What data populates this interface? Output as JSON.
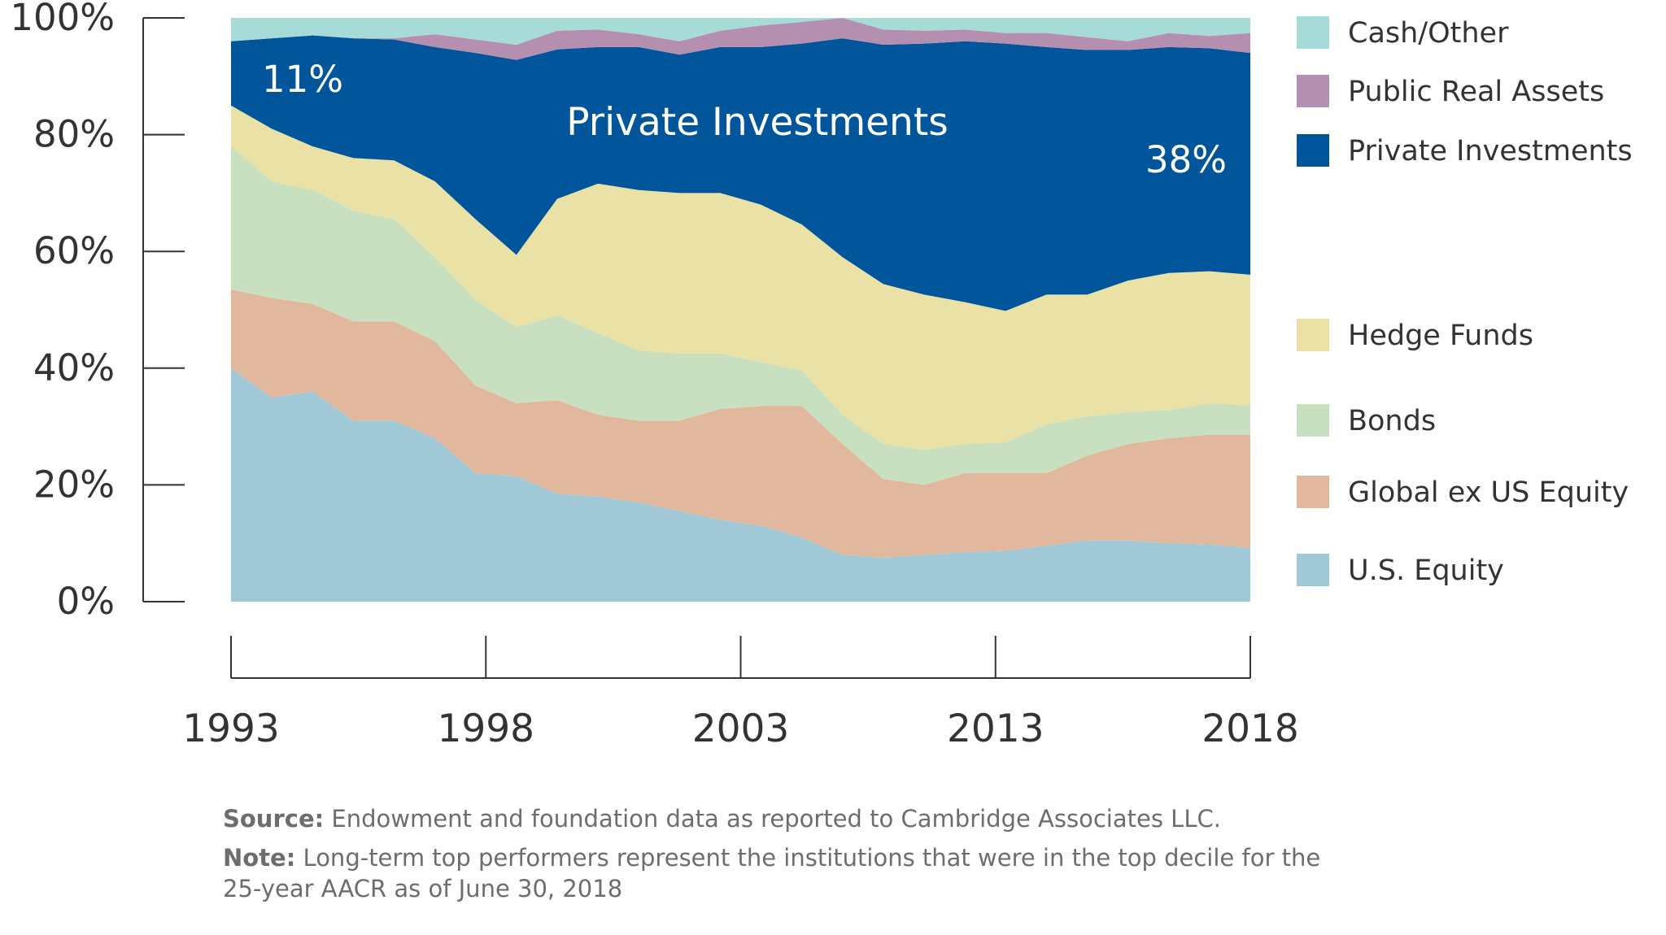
{
  "chart_data": {
    "type": "area",
    "stacked": true,
    "x": [
      1993,
      1994,
      1995,
      1996,
      1997,
      1998,
      1999,
      2000,
      2001,
      2002,
      2003,
      2004,
      2005,
      2006,
      2007,
      2008,
      2009,
      2010,
      2011,
      2012,
      2013,
      2014,
      2015,
      2016,
      2017,
      2018
    ],
    "x_tick_labels": [
      "1993",
      "1998",
      "2003",
      "2013",
      "2018"
    ],
    "y_tick_labels": [
      "0%",
      "20%",
      "40%",
      "60%",
      "80%",
      "100%"
    ],
    "ylim": [
      0,
      100
    ],
    "grid": false,
    "legend_position": "right",
    "series": [
      {
        "name": "U.S. Equity",
        "color": "#a1c8d6",
        "values": [
          40,
          35,
          36,
          31,
          31,
          28,
          22,
          21.5,
          18.5,
          18,
          17,
          15.5,
          14,
          13,
          11,
          8,
          7.5,
          8,
          8.5,
          8.7,
          9.6,
          10.5,
          10.5,
          10,
          9.8,
          9.2
        ]
      },
      {
        "name": "Global ex US Equity",
        "color": "#e1b79e",
        "values": [
          13.5,
          17,
          15,
          17,
          17,
          16.6,
          15,
          12.5,
          16,
          14,
          14,
          15.5,
          19,
          20.5,
          22.5,
          19,
          13.5,
          12,
          13.5,
          13.3,
          12.4,
          14.5,
          16.5,
          18,
          18.8,
          19.4
        ]
      },
      {
        "name": "Bonds",
        "color": "#c8dfc0",
        "values": [
          24.5,
          20,
          19.5,
          19,
          17.5,
          14.4,
          14.7,
          13,
          14.5,
          14,
          12,
          11.5,
          9.5,
          7.5,
          6.1,
          5,
          6,
          6,
          5,
          5.3,
          8.4,
          6.7,
          5.5,
          4.8,
          5.4,
          5
        ]
      },
      {
        "name": "Hedge Funds",
        "color": "#e9e1a6",
        "values": [
          7,
          9,
          7.5,
          9,
          10.1,
          13,
          13.8,
          12.4,
          20,
          25.6,
          27.5,
          27.5,
          27.5,
          27,
          25,
          27,
          27.4,
          26.6,
          24.3,
          22.5,
          22.2,
          20.9,
          22.5,
          23.5,
          22.6,
          22.4
        ]
      },
      {
        "name": "Private Investments",
        "color": "#00559b",
        "values": [
          11,
          15.5,
          19,
          20.5,
          20.7,
          23,
          28.5,
          33.4,
          25.6,
          23.4,
          24.5,
          23.7,
          25,
          27,
          31,
          37.5,
          41,
          43,
          44.7,
          45.8,
          42.4,
          41.9,
          39.5,
          38.7,
          38.2,
          38
        ]
      },
      {
        "name": "Public Real Assets",
        "color": "#b48fb0",
        "values": [
          0,
          0,
          0,
          0,
          0.2,
          2.2,
          2.3,
          2.6,
          3.2,
          3,
          2.2,
          2.3,
          2.8,
          3.7,
          3.7,
          3.5,
          2.6,
          2.2,
          2,
          1.8,
          2.4,
          2.2,
          1.5,
          2.4,
          2.1,
          3.4
        ]
      },
      {
        "name": "Cash/Other",
        "color": "#a6dbd8",
        "values": [
          4,
          3.5,
          3,
          3.5,
          3.5,
          2.8,
          3.7,
          4.6,
          2.2,
          2,
          2.8,
          4,
          2.2,
          1.3,
          0.7,
          0,
          2,
          2.2,
          2,
          2.6,
          2.6,
          3.3,
          4,
          2.6,
          3.1,
          2.6
        ]
      }
    ],
    "annotations": {
      "start_value": "11%",
      "center_label": "Private Investments",
      "end_value": "38%"
    }
  },
  "legend_order": [
    "Cash/Other",
    "Public Real Assets",
    "Private Investments",
    "Hedge Funds",
    "Bonds",
    "Global ex US Equity",
    "U.S. Equity"
  ],
  "footer": {
    "source_label": "Source:",
    "source_text": " Endowment and foundation data as reported to Cambridge Associates LLC.",
    "note_label": "Note:",
    "note_text_1": " Long-term top performers represent the institutions that were in the top decile for the",
    "note_text_2": "25-year AACR as of June 30, 2018"
  }
}
